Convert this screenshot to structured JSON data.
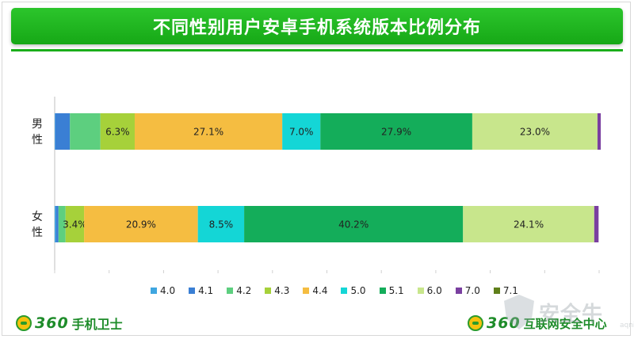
{
  "title": "不同性别用户安卓手机系统版本比例分布",
  "chart_data": {
    "type": "bar",
    "orientation": "horizontal",
    "stacked": true,
    "percent": true,
    "categories": [
      "男性",
      "女性"
    ],
    "category_labels": [
      [
        "男",
        "性"
      ],
      [
        "女",
        "性"
      ]
    ],
    "legend_position": "bottom",
    "grid": false,
    "xlim": [
      0,
      100
    ],
    "series": [
      {
        "name": "4.0",
        "color": "#3fa6e0",
        "values": [
          0.1,
          0.2
        ],
        "labels": [
          "",
          ""
        ]
      },
      {
        "name": "4.1",
        "color": "#3a7fd4",
        "values": [
          2.7,
          0.5
        ],
        "labels": [
          "",
          ""
        ]
      },
      {
        "name": "4.2",
        "color": "#5dcf7f",
        "values": [
          5.6,
          1.3
        ],
        "labels": [
          "",
          ""
        ]
      },
      {
        "name": "4.3",
        "color": "#a6d13a",
        "values": [
          6.3,
          3.4
        ],
        "labels": [
          "6.3%",
          "3.4%"
        ]
      },
      {
        "name": "4.4",
        "color": "#f5bd41",
        "values": [
          27.1,
          20.9
        ],
        "labels": [
          "27.1%",
          "20.9%"
        ]
      },
      {
        "name": "5.0",
        "color": "#14d6d6",
        "values": [
          7.0,
          8.5
        ],
        "labels": [
          "7.0%",
          "8.5%"
        ]
      },
      {
        "name": "5.1",
        "color": "#14ad5a",
        "values": [
          27.9,
          40.2
        ],
        "labels": [
          "27.9%",
          "40.2%"
        ]
      },
      {
        "name": "6.0",
        "color": "#c8e68c",
        "values": [
          23.0,
          24.1
        ],
        "labels": [
          "23.0%",
          "24.1%"
        ]
      },
      {
        "name": "7.0",
        "color": "#7a3fa0",
        "values": [
          0.6,
          0.8
        ],
        "labels": [
          "",
          ""
        ]
      },
      {
        "name": "7.1",
        "color": "#5f7f1a",
        "values": [
          0.0,
          0.0
        ],
        "labels": [
          "",
          ""
        ]
      }
    ]
  },
  "footer": {
    "left_brand_number": "360",
    "left_brand_name": "手机卫士",
    "right_brand_number": "360",
    "right_brand_name": "互联网安全中心"
  },
  "watermark": {
    "text": "安全牛",
    "small": "aqniu.com"
  },
  "icons": {
    "left_logo": "360-logo-icon",
    "right_logo": "360-logo-icon",
    "watermark_logo": "shield-icon"
  }
}
